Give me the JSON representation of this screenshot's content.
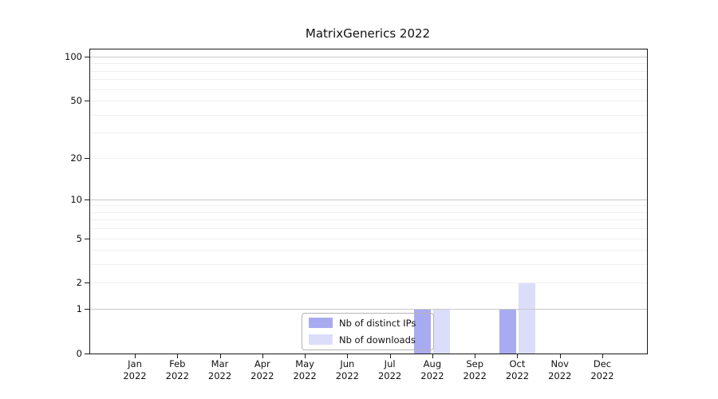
{
  "title": "MatrixGenerics 2022",
  "legend": {
    "items": [
      {
        "label": "Nb of distinct IPs",
        "color": "#a9abf0"
      },
      {
        "label": "Nb of downloads",
        "color": "#dcddf8"
      }
    ]
  },
  "chart_data": {
    "type": "bar",
    "title": "MatrixGenerics 2022",
    "categories": [
      "Jan",
      "Feb",
      "Mar",
      "Apr",
      "May",
      "Jun",
      "Jul",
      "Aug",
      "Sep",
      "Oct",
      "Nov",
      "Dec"
    ],
    "category_year": "2022",
    "series": [
      {
        "name": "Nb of distinct IPs",
        "color": "#a9abf0",
        "values": [
          0,
          0,
          0,
          0,
          0,
          0,
          0,
          1,
          0,
          1,
          0,
          0
        ]
      },
      {
        "name": "Nb of downloads",
        "color": "#dcddf8",
        "values": [
          0,
          0,
          0,
          0,
          0,
          0,
          0,
          1,
          0,
          2,
          0,
          0
        ]
      }
    ],
    "yscale": "log1p",
    "ylim": [
      0,
      112
    ],
    "yticks": [
      0,
      1,
      2,
      5,
      10,
      20,
      50,
      100
    ],
    "major_gridlines": [
      1,
      10,
      100
    ],
    "minor_gridlines": [
      2,
      3,
      4,
      5,
      6,
      7,
      8,
      9,
      20,
      30,
      40,
      50,
      60,
      70,
      80,
      90
    ],
    "grid": "horizontal",
    "legend_position": "inside lower-center",
    "colors": {
      "axis": "#1a1a1a",
      "major_grid": "#c8c8c8",
      "minor_grid": "#efefef"
    }
  }
}
